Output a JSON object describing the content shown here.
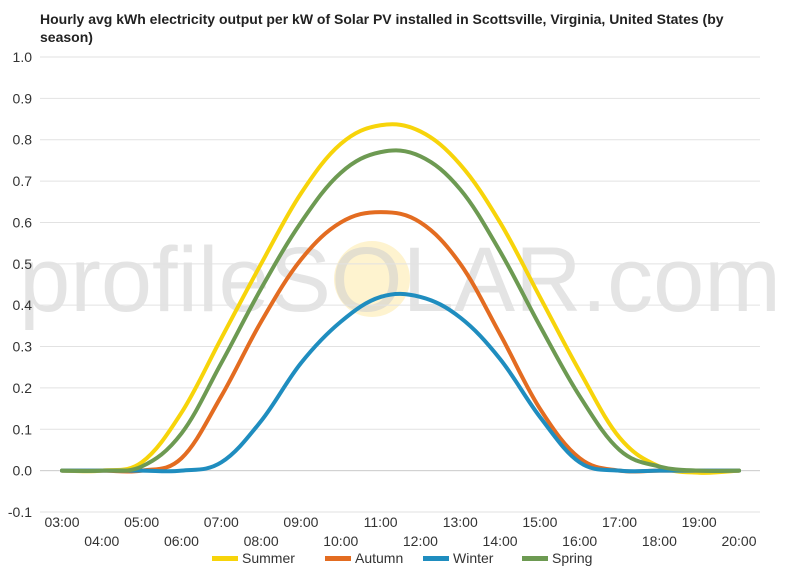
{
  "chart_data": {
    "type": "line",
    "title": "Hourly avg kWh electricity output per kW of Solar PV installed in Scottsville, Virginia, United States (by season)",
    "xlabel": "",
    "ylabel": "",
    "x": [
      "03:00",
      "04:00",
      "05:00",
      "06:00",
      "07:00",
      "08:00",
      "09:00",
      "10:00",
      "11:00",
      "12:00",
      "13:00",
      "14:00",
      "15:00",
      "16:00",
      "17:00",
      "18:00",
      "19:00",
      "20:00"
    ],
    "ylim": [
      -0.1,
      1.0
    ],
    "yticks": [
      "1.0",
      "0.9",
      "0.8",
      "0.7",
      "0.6",
      "0.5",
      "0.4",
      "0.3",
      "0.2",
      "0.1",
      "0.0",
      "-0.1"
    ],
    "yticks_values": [
      1.0,
      0.9,
      0.8,
      0.7,
      0.6,
      0.5,
      0.4,
      0.3,
      0.2,
      0.1,
      0.0,
      -0.1
    ],
    "grid": true,
    "legend_position": "bottom",
    "series": [
      {
        "name": "Summer",
        "color": "#f7d40a",
        "values": [
          0.0,
          0.0,
          0.02,
          0.14,
          0.32,
          0.5,
          0.67,
          0.79,
          0.835,
          0.82,
          0.74,
          0.6,
          0.42,
          0.24,
          0.08,
          0.01,
          -0.005,
          0.0
        ]
      },
      {
        "name": "Autumn",
        "color": "#e36c21",
        "values": [
          0.0,
          0.0,
          0.0,
          0.03,
          0.18,
          0.36,
          0.51,
          0.6,
          0.625,
          0.6,
          0.5,
          0.33,
          0.15,
          0.03,
          0.0,
          0.0,
          0.0,
          0.0
        ]
      },
      {
        "name": "Winter",
        "color": "#1f8dbf",
        "values": [
          0.0,
          0.0,
          0.0,
          0.0,
          0.02,
          0.12,
          0.26,
          0.36,
          0.42,
          0.42,
          0.37,
          0.27,
          0.13,
          0.02,
          0.0,
          0.0,
          0.0,
          0.0
        ]
      },
      {
        "name": "Spring",
        "color": "#6d9a52",
        "values": [
          0.0,
          0.0,
          0.01,
          0.09,
          0.26,
          0.44,
          0.6,
          0.72,
          0.77,
          0.76,
          0.68,
          0.53,
          0.35,
          0.18,
          0.05,
          0.01,
          0.0,
          0.0
        ]
      }
    ],
    "watermark": "profileSOLAR.com"
  }
}
